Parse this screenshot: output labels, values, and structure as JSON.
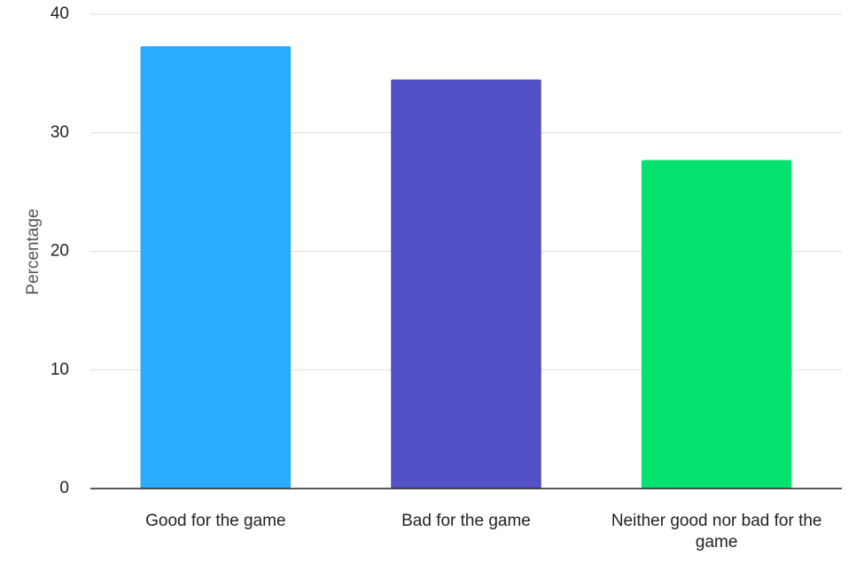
{
  "chart_data": {
    "type": "bar",
    "title": "",
    "xlabel": "",
    "ylabel": "Percentage",
    "ylim": [
      0,
      40
    ],
    "yticks": [
      0,
      10,
      20,
      30,
      40
    ],
    "grid": true,
    "categories": [
      "Good for the game",
      "Bad for the game",
      "Neither good nor bad for the game"
    ],
    "values": [
      37.3,
      34.5,
      27.7
    ],
    "colors": [
      "#29abff",
      "#5450c6",
      "#05e26e"
    ]
  }
}
